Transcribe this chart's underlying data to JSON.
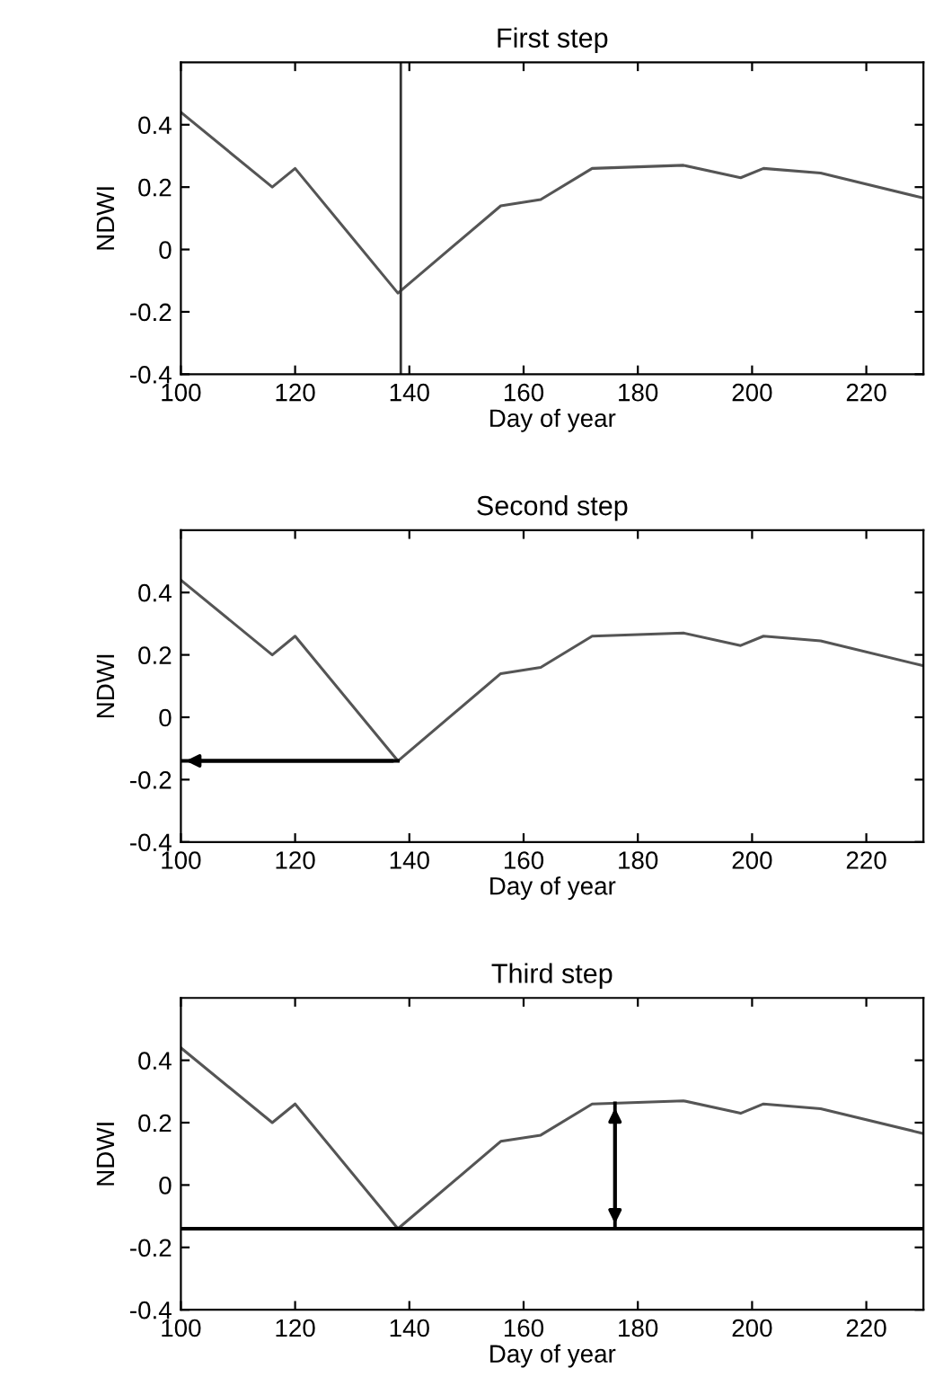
{
  "chart_data": [
    {
      "type": "line",
      "title": "First step",
      "xlabel": "Day of year",
      "ylabel": "NDWI",
      "x": [
        100,
        116,
        120,
        138,
        156,
        163,
        172,
        188,
        198,
        202,
        212,
        230
      ],
      "series": [
        {
          "color": "#555555",
          "values": [
            0.44,
            0.2,
            0.26,
            -0.14,
            0.14,
            0.16,
            0.26,
            0.27,
            0.23,
            0.26,
            0.245,
            0.165
          ]
        }
      ],
      "xlim": [
        100,
        230
      ],
      "ylim": [
        -0.4,
        0.6
      ],
      "xticks": [
        100,
        120,
        140,
        160,
        180,
        200,
        220
      ],
      "yticks": [
        -0.4,
        -0.2,
        0,
        0.2,
        0.4
      ],
      "ref_lines": [
        {
          "axis": "x",
          "value": 138.5,
          "color": "#333333"
        }
      ]
    },
    {
      "type": "line",
      "title": "Second step",
      "xlabel": "Day of year",
      "ylabel": "NDWI",
      "x": [
        100,
        116,
        120,
        138,
        156,
        163,
        172,
        188,
        198,
        202,
        212,
        230
      ],
      "series": [
        {
          "color": "#555555",
          "values": [
            0.44,
            0.2,
            0.26,
            -0.14,
            0.14,
            0.16,
            0.26,
            0.27,
            0.23,
            0.26,
            0.245,
            0.165
          ]
        }
      ],
      "xlim": [
        100,
        230
      ],
      "ylim": [
        -0.4,
        0.6
      ],
      "xticks": [
        100,
        120,
        140,
        160,
        180,
        200,
        220
      ],
      "yticks": [
        -0.4,
        -0.2,
        0,
        0.2,
        0.4
      ],
      "ref_lines": [
        {
          "axis": "y",
          "value": -0.14,
          "color": "#000000"
        }
      ]
    },
    {
      "type": "line",
      "title": "Third step",
      "xlabel": "Day of year",
      "ylabel": "NDWI",
      "x": [
        100,
        116,
        120,
        138,
        156,
        163,
        172,
        188,
        198,
        202,
        212,
        230
      ],
      "series": [
        {
          "color": "#555555",
          "values": [
            0.44,
            0.2,
            0.26,
            -0.14,
            0.14,
            0.16,
            0.26,
            0.27,
            0.23,
            0.26,
            0.245,
            0.165
          ]
        }
      ],
      "xlim": [
        100,
        230
      ],
      "ylim": [
        -0.4,
        0.6
      ],
      "xticks": [
        100,
        120,
        140,
        160,
        180,
        200,
        220
      ],
      "yticks": [
        -0.4,
        -0.2,
        0,
        0.2,
        0.4
      ],
      "ref_lines": [
        {
          "axis": "y",
          "value": -0.14,
          "color": "#000000"
        },
        {
          "axis": "x",
          "value": 176,
          "color": "#000000"
        }
      ]
    }
  ]
}
